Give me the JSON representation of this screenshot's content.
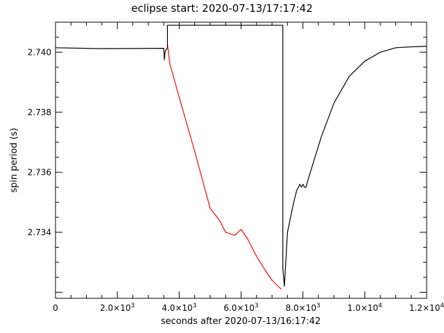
{
  "chart_data": {
    "type": "line",
    "title": "eclipse start: 2020-07-13/17:17:42",
    "xlabel": "seconds after 2020-07-13/16:17:42",
    "ylabel": "spin period (s)",
    "xlim": [
      0,
      12000
    ],
    "ylim": [
      2.7318,
      2.741
    ],
    "x_major_ticks": [
      0,
      2000,
      4000,
      6000,
      8000,
      10000,
      12000
    ],
    "x_tick_labels": [
      {
        "value": 0,
        "label": "0",
        "base": "",
        "exp": ""
      },
      {
        "value": 2000,
        "label": "",
        "base": "2.0×10",
        "exp": "3"
      },
      {
        "value": 4000,
        "label": "",
        "base": "4.0×10",
        "exp": "3"
      },
      {
        "value": 6000,
        "label": "",
        "base": "6.0×10",
        "exp": "3"
      },
      {
        "value": 8000,
        "label": "",
        "base": "8.0×10",
        "exp": "3"
      },
      {
        "value": 10000,
        "label": "",
        "base": "1.0×10",
        "exp": "4"
      },
      {
        "value": 12000,
        "label": "",
        "base": "1.2×10",
        "exp": "4"
      }
    ],
    "y_major_ticks": [
      2.734,
      2.736,
      2.738,
      2.74
    ],
    "y_tick_labels": [
      "2.734",
      "2.736",
      "2.738",
      "2.740"
    ],
    "series": [
      {
        "color": "#000000",
        "x": [
          0,
          1500,
          3500,
          3520,
          3540,
          3560,
          3580,
          3600,
          3620
        ],
        "y": [
          2.74015,
          2.74012,
          2.74013,
          2.73975,
          2.74,
          2.74005,
          2.7401,
          2.74012,
          2.74015
        ]
      },
      {
        "color": "#ff0000",
        "x": [
          3620,
          3700,
          4000,
          4500,
          5000,
          5300,
          5500,
          5800,
          6000,
          6200,
          6500,
          6800,
          7000,
          7300
        ],
        "y": [
          2.74025,
          2.7396,
          2.7385,
          2.7367,
          2.7348,
          2.7344,
          2.734,
          2.7339,
          2.7341,
          2.7338,
          2.7332,
          2.7327,
          2.7324,
          2.7321
        ]
      },
      {
        "color": "#000000",
        "x": [
          3620,
          3620,
          7350,
          7350,
          7400,
          7500,
          7700,
          7800,
          7900,
          7950,
          8000,
          8050,
          8100,
          8150,
          8300,
          8600,
          9000,
          9500,
          10000,
          10500,
          11000,
          11500,
          12000
        ],
        "y": [
          2.74015,
          2.7409,
          2.7409,
          2.7328,
          2.7322,
          2.734,
          2.735,
          2.7354,
          2.7356,
          2.7355,
          2.7356,
          2.7355,
          2.7355,
          2.7357,
          2.7362,
          2.7372,
          2.7383,
          2.7392,
          2.7397,
          2.74,
          2.74015,
          2.74018,
          2.7402
        ]
      }
    ]
  }
}
